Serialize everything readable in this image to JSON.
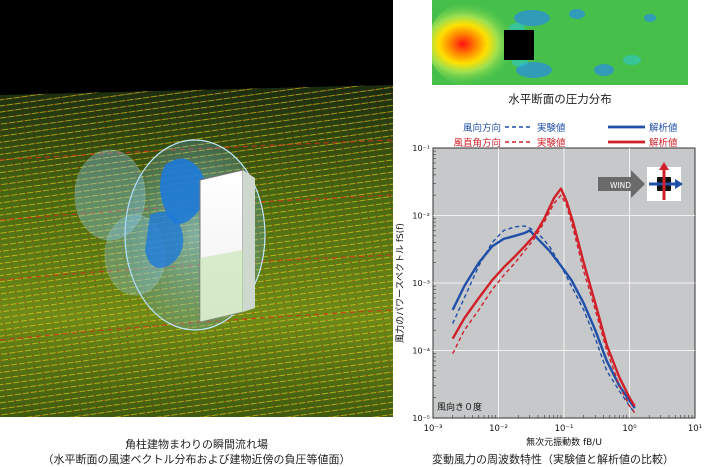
{
  "left_figure": {
    "caption_line1": "角柱建物まわりの瞬間流れ場",
    "caption_line2": "（水平断面の風速ベクトル分布および建物近傍の負圧等値面）"
  },
  "contour_figure": {
    "caption": "水平断面の圧力分布"
  },
  "chart_caption": "変動風力の周波数特性（実験値と解析値の比較）",
  "legend": {
    "row1_label": "風向方向",
    "row2_label": "風直角方向",
    "experiment": "実験値",
    "analysis": "解析値",
    "wind_label": "WIND"
  },
  "annotation": "風向き０度",
  "colors": {
    "wind_direction": "#1f4fa8",
    "cross_wind": "#d0202a",
    "plot_bg": "#c6c8c9"
  },
  "chart_data": {
    "type": "line",
    "xlabel": "無次元振動数 fB/U",
    "ylabel": "風力のパワースペクトル fS(f)",
    "x_scale": "log",
    "y_scale": "log",
    "xlim": [
      0.001,
      10
    ],
    "ylim": [
      1e-05,
      0.1
    ],
    "x_ticks": [
      0.001,
      0.01,
      0.1,
      1,
      10
    ],
    "x_tick_labels": [
      "10⁻³",
      "10⁻²",
      "10⁻¹",
      "10⁰",
      "10¹"
    ],
    "y_ticks": [
      1e-05,
      0.0001,
      0.001,
      0.01,
      0.1
    ],
    "y_tick_labels": [
      "10⁻⁵",
      "10⁻⁴",
      "10⁻³",
      "10⁻²",
      "10⁻¹"
    ],
    "series": [
      {
        "name": "風向方向 実験値",
        "style": "dashed",
        "color": "#1f4fa8",
        "x": [
          0.002,
          0.003,
          0.005,
          0.008,
          0.012,
          0.018,
          0.025,
          0.03,
          0.04,
          0.06,
          0.09,
          0.13,
          0.2,
          0.3,
          0.45,
          0.7,
          1.0,
          1.2
        ],
        "y": [
          0.00025,
          0.0006,
          0.0018,
          0.004,
          0.006,
          0.0068,
          0.007,
          0.0065,
          0.0055,
          0.0035,
          0.0018,
          0.0009,
          0.0004,
          0.00015,
          5e-05,
          2.5e-05,
          1.5e-05,
          1.2e-05
        ]
      },
      {
        "name": "風向方向 解析値",
        "style": "solid",
        "color": "#1f4fa8",
        "x": [
          0.002,
          0.003,
          0.005,
          0.008,
          0.012,
          0.018,
          0.025,
          0.03,
          0.04,
          0.06,
          0.09,
          0.13,
          0.2,
          0.3,
          0.45,
          0.7,
          1.0,
          1.2
        ],
        "y": [
          0.0004,
          0.0009,
          0.002,
          0.0035,
          0.0045,
          0.005,
          0.0055,
          0.006,
          0.0045,
          0.003,
          0.0018,
          0.0011,
          0.0005,
          0.0002,
          7e-05,
          3e-05,
          1.8e-05,
          1.4e-05
        ]
      },
      {
        "name": "風直角方向 実験値",
        "style": "dashed",
        "color": "#d0202a",
        "x": [
          0.002,
          0.003,
          0.005,
          0.008,
          0.012,
          0.018,
          0.025,
          0.035,
          0.05,
          0.07,
          0.09,
          0.11,
          0.14,
          0.2,
          0.3,
          0.45,
          0.7,
          1.0,
          1.2
        ],
        "y": [
          9e-05,
          0.0002,
          0.0004,
          0.0008,
          0.0013,
          0.002,
          0.003,
          0.0045,
          0.008,
          0.015,
          0.02,
          0.014,
          0.006,
          0.0015,
          0.0004,
          0.0001,
          3e-05,
          1.5e-05,
          1.2e-05
        ]
      },
      {
        "name": "風直角方向 解析値",
        "style": "solid",
        "color": "#d0202a",
        "x": [
          0.002,
          0.003,
          0.005,
          0.008,
          0.012,
          0.018,
          0.025,
          0.035,
          0.05,
          0.07,
          0.09,
          0.11,
          0.14,
          0.2,
          0.3,
          0.45,
          0.7,
          1.0,
          1.2
        ],
        "y": [
          0.00015,
          0.0003,
          0.0006,
          0.0011,
          0.0017,
          0.0025,
          0.0035,
          0.005,
          0.009,
          0.018,
          0.025,
          0.016,
          0.0075,
          0.002,
          0.0005,
          0.00012,
          4e-05,
          2e-05,
          1.5e-05
        ]
      }
    ]
  }
}
